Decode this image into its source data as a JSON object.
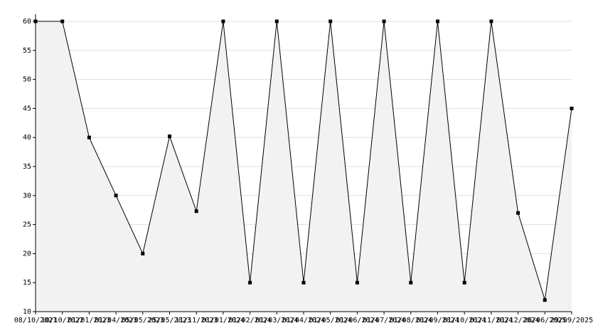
{
  "chart_data": {
    "type": "area",
    "categories": [
      "08/10/2021",
      "10/10/2022",
      "01/01/2023",
      "01/04/2023",
      "05/05/2023",
      "25/05/2023",
      "11/11/2023",
      "01/01/2024",
      "01/02/2024",
      "01/03/2024",
      "01/04/2024",
      "01/05/2024",
      "01/06/2024",
      "01/07/2024",
      "01/08/2024",
      "01/09/2024",
      "01/10/2024",
      "01/11/2024",
      "01/12/2024",
      "26/06/2025",
      "29/09/2025"
    ],
    "values": [
      60,
      60,
      40,
      30,
      20,
      40.2,
      27.3,
      60,
      15,
      60,
      15,
      60,
      15,
      60,
      15,
      60,
      15,
      60,
      27,
      12,
      45
    ],
    "color": "#000000",
    "fill": "#f2f2f2",
    "ylim": [
      10,
      60
    ],
    "yticks": [
      10,
      15,
      20,
      25,
      30,
      35,
      40,
      45,
      50,
      55,
      60
    ],
    "grid": true
  }
}
